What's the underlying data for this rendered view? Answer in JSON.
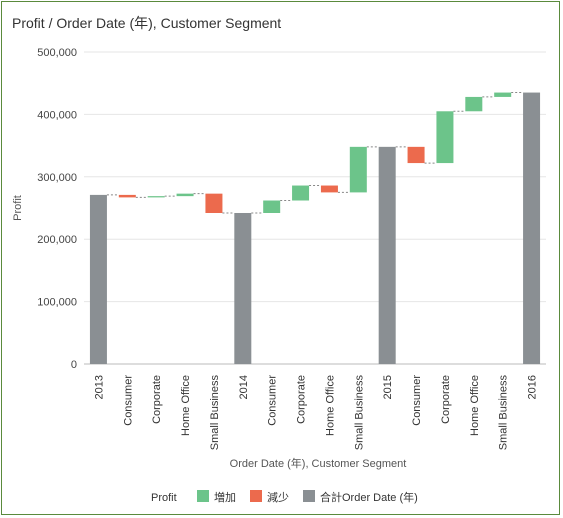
{
  "chart_data": {
    "type": "waterfall",
    "title": "Profit / Order Date (年), Customer Segment",
    "xlabel": "Order Date (年), Customer Segment",
    "ylabel": "Profit",
    "ylim": [
      0,
      500000
    ],
    "yticks": [
      0,
      100000,
      200000,
      300000,
      400000,
      500000
    ],
    "ytick_labels": [
      "0",
      "100,000",
      "200,000",
      "300,000",
      "400,000",
      "500,000"
    ],
    "categories": [
      "2013",
      "Consumer",
      "Corporate",
      "Home Office",
      "Small Business",
      "2014",
      "Consumer",
      "Corporate",
      "Home Office",
      "Small Business",
      "2015",
      "Consumer",
      "Corporate",
      "Home Office",
      "Small Business",
      "2016"
    ],
    "bars": [
      {
        "kind": "total",
        "start": 0,
        "end": 271000
      },
      {
        "kind": "decrease",
        "start": 271000,
        "end": 267000
      },
      {
        "kind": "increase",
        "start": 267000,
        "end": 269000
      },
      {
        "kind": "increase",
        "start": 269000,
        "end": 273000
      },
      {
        "kind": "decrease",
        "start": 273000,
        "end": 242000
      },
      {
        "kind": "total",
        "start": 0,
        "end": 242000
      },
      {
        "kind": "increase",
        "start": 242000,
        "end": 262000
      },
      {
        "kind": "increase",
        "start": 262000,
        "end": 286000
      },
      {
        "kind": "decrease",
        "start": 286000,
        "end": 275000
      },
      {
        "kind": "increase",
        "start": 275000,
        "end": 348000
      },
      {
        "kind": "total",
        "start": 0,
        "end": 348000
      },
      {
        "kind": "decrease",
        "start": 348000,
        "end": 322000
      },
      {
        "kind": "increase",
        "start": 322000,
        "end": 405000
      },
      {
        "kind": "increase",
        "start": 405000,
        "end": 428000
      },
      {
        "kind": "increase",
        "start": 428000,
        "end": 435000
      },
      {
        "kind": "total",
        "start": 0,
        "end": 435000
      }
    ],
    "legend": {
      "title": "Profit",
      "placement": "bottom-center",
      "items": [
        {
          "kind": "increase",
          "label": "増加",
          "color": "#6cc48a"
        },
        {
          "kind": "decrease",
          "label": "減少",
          "color": "#ec6a4d"
        },
        {
          "kind": "total",
          "label": "合計Order Date (年)",
          "color": "#8a8f93"
        }
      ]
    },
    "grid": true
  }
}
